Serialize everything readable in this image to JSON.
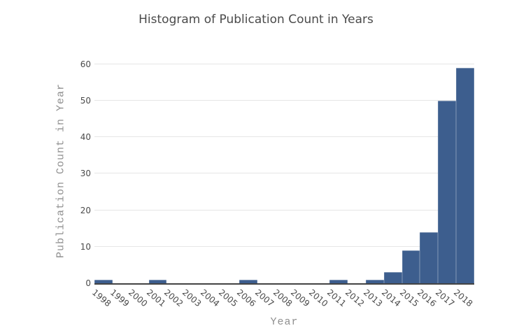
{
  "chart_data": {
    "type": "bar",
    "title": "Histogram of Publication Count in Years",
    "xlabel": "Year",
    "ylabel": "Publication Count in Year",
    "categories": [
      "1998",
      "1999",
      "2000",
      "2001",
      "2002",
      "2003",
      "2004",
      "2005",
      "2006",
      "2007",
      "2008",
      "2009",
      "2010",
      "2011",
      "2012",
      "2013",
      "2014",
      "2015",
      "2016",
      "2017",
      "2018"
    ],
    "values": [
      1,
      0,
      0,
      1,
      0,
      0,
      0,
      0,
      1,
      0,
      0,
      0,
      0,
      1,
      0,
      1,
      3,
      9,
      14,
      50,
      59
    ],
    "yticks": [
      0,
      10,
      20,
      30,
      40,
      50,
      60
    ],
    "ylim": [
      0,
      61.5
    ],
    "grid": true,
    "legend_visible": false,
    "tick_angle_deg": 40
  },
  "colors": {
    "bar_fill": "#3D5E8E",
    "gridline": "#E6E6E6",
    "zero_line": "#444444",
    "tick_label": "#4A4A4A",
    "axis_title": "#8F8F8F",
    "title": "#4A4A4A",
    "background": "#FFFFFF"
  }
}
